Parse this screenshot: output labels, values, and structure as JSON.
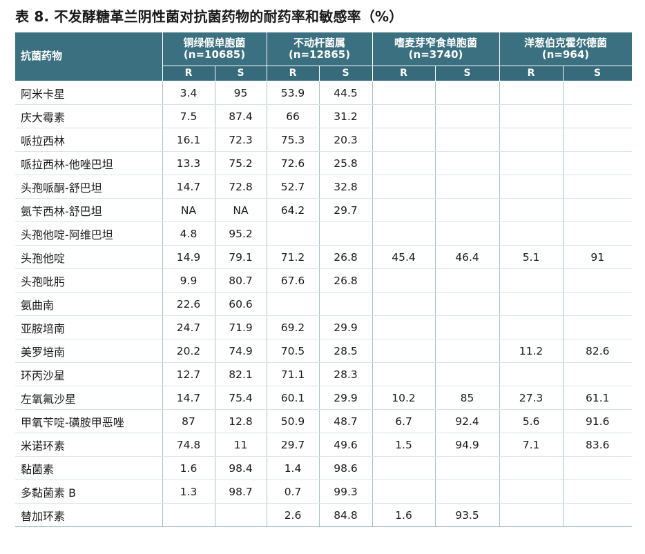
{
  "title": "表 8. 不发酵糖革兰阴性菌对抗菌药物的耐药率和敏感率（%）",
  "header": {
    "drug_col": "抗菌药物",
    "groups": [
      {
        "name": "铜绿假单胞菌",
        "n": "(n=10685)"
      },
      {
        "name": "不动杆菌属",
        "n": "(n=12865)"
      },
      {
        "name": "嗜麦芽窄食单胞菌",
        "n": "(n=3740)"
      },
      {
        "name": "洋葱伯克霍尔德菌",
        "n": "(n=964)"
      }
    ],
    "r_label": "R",
    "s_label": "S"
  },
  "rows": [
    {
      "drug": "阿米卡星",
      "vals": [
        "3.4",
        "95",
        "53.9",
        "44.5",
        "",
        "",
        "",
        ""
      ]
    },
    {
      "drug": "庆大霉素",
      "vals": [
        "7.5",
        "87.4",
        "66",
        "31.2",
        "",
        "",
        "",
        ""
      ]
    },
    {
      "drug": "哌拉西林",
      "vals": [
        "16.1",
        "72.3",
        "75.3",
        "20.3",
        "",
        "",
        "",
        ""
      ]
    },
    {
      "drug": "哌拉西林-他唑巴坦",
      "vals": [
        "13.3",
        "75.2",
        "72.6",
        "25.8",
        "",
        "",
        "",
        ""
      ]
    },
    {
      "drug": "头孢哌酮-舒巴坦",
      "vals": [
        "14.7",
        "72.8",
        "52.7",
        "32.8",
        "",
        "",
        "",
        ""
      ]
    },
    {
      "drug": "氨苄西林-舒巴坦",
      "vals": [
        "NA",
        "NA",
        "64.2",
        "29.7",
        "",
        "",
        "",
        ""
      ]
    },
    {
      "drug": "头孢他啶-阿维巴坦",
      "vals": [
        "4.8",
        "95.2",
        "",
        "",
        "",
        "",
        "",
        ""
      ]
    },
    {
      "drug": "头孢他啶",
      "vals": [
        "14.9",
        "79.1",
        "71.2",
        "26.8",
        "45.4",
        "46.4",
        "5.1",
        "91"
      ]
    },
    {
      "drug": "头孢吡肟",
      "vals": [
        "9.9",
        "80.7",
        "67.6",
        "26.8",
        "",
        "",
        "",
        ""
      ]
    },
    {
      "drug": "氨曲南",
      "vals": [
        "22.6",
        "60.6",
        "",
        "",
        "",
        "",
        "",
        ""
      ]
    },
    {
      "drug": "亚胺培南",
      "vals": [
        "24.7",
        "71.9",
        "69.2",
        "29.9",
        "",
        "",
        "",
        ""
      ]
    },
    {
      "drug": "美罗培南",
      "vals": [
        "20.2",
        "74.9",
        "70.5",
        "28.5",
        "",
        "",
        "11.2",
        "82.6"
      ]
    },
    {
      "drug": "环丙沙星",
      "vals": [
        "12.7",
        "82.1",
        "71.1",
        "28.3",
        "",
        "",
        "",
        ""
      ]
    },
    {
      "drug": "左氧氟沙星",
      "vals": [
        "14.7",
        "75.4",
        "60.1",
        "29.9",
        "10.2",
        "85",
        "27.3",
        "61.1"
      ]
    },
    {
      "drug": "甲氧苄啶-磺胺甲恶唑",
      "vals": [
        "87",
        "12.8",
        "50.9",
        "48.7",
        "6.7",
        "92.4",
        "5.6",
        "91.6"
      ]
    },
    {
      "drug": "米诺环素",
      "vals": [
        "74.8",
        "11",
        "29.7",
        "49.6",
        "1.5",
        "94.9",
        "7.1",
        "83.6"
      ]
    },
    {
      "drug": "黏菌素",
      "vals": [
        "1.6",
        "98.4",
        "1.4",
        "98.6",
        "",
        "",
        "",
        ""
      ]
    },
    {
      "drug": "多黏菌素 B",
      "vals": [
        "1.3",
        "98.7",
        "0.7",
        "99.3",
        "",
        "",
        "",
        ""
      ]
    },
    {
      "drug": "替加环素",
      "vals": [
        "",
        "",
        "2.6",
        "84.8",
        "1.6",
        "93.5",
        "",
        ""
      ]
    }
  ],
  "colors": {
    "header_bg": "#3b7080",
    "header_text": "#ffffff",
    "grid": "#a8c2cb"
  }
}
